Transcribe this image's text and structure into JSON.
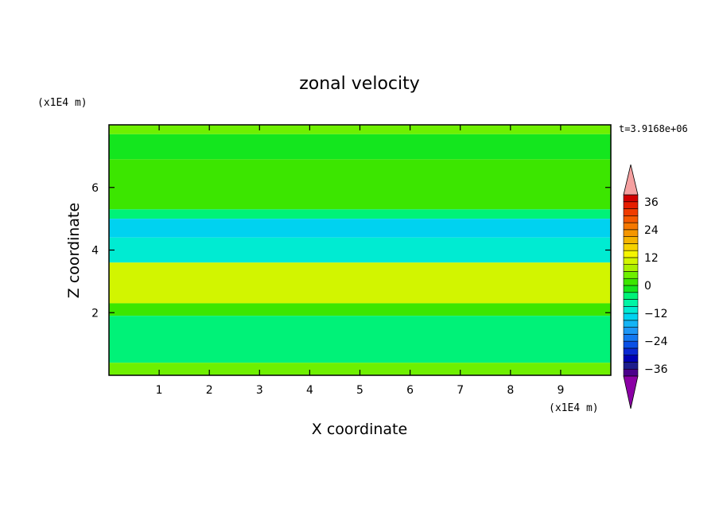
{
  "chart_data": {
    "type": "heatmap",
    "title": "zonal velocity",
    "xlabel": "X coordinate",
    "ylabel": "Z coordinate",
    "x_unit": "(x1E4 m)",
    "y_unit": "(x1E4 m)",
    "time_label": "t=3.9168e+06",
    "xlim": [
      0,
      10
    ],
    "ylim": [
      0,
      8
    ],
    "x_ticks": [
      "1",
      "2",
      "3",
      "4",
      "5",
      "6",
      "7",
      "8",
      "9"
    ],
    "y_ticks": [
      "2",
      "4",
      "6"
    ],
    "colorbar": {
      "levels": [
        -42,
        -39,
        -36,
        -33,
        -30,
        -27,
        -24,
        -21,
        -18,
        -15,
        -12,
        -9,
        -6,
        -3,
        0,
        3,
        6,
        9,
        12,
        15,
        18,
        21,
        24,
        27,
        30,
        33,
        36,
        39,
        42
      ],
      "labels": [
        "36",
        "24",
        "12",
        "0",
        "-12",
        "-24",
        "-36"
      ],
      "colors": [
        "#8b00a5",
        "#4b008b",
        "#1d1d8c",
        "#0000b4",
        "#0a28d2",
        "#0a50e6",
        "#1478f0",
        "#1e96f5",
        "#14b4f5",
        "#00d2f0",
        "#00ebd2",
        "#00f5a5",
        "#00f278",
        "#14e61e",
        "#3ce600",
        "#6ef000",
        "#aaf000",
        "#d2f500",
        "#f5f500",
        "#f5d200",
        "#f5b400",
        "#f59600",
        "#f57800",
        "#f55a00",
        "#f03c00",
        "#e61e00",
        "#d20000",
        "#f5a0a0"
      ]
    },
    "bands": [
      {
        "z": [
          7.7,
          8.0
        ],
        "value": 3
      },
      {
        "z": [
          6.9,
          7.7
        ],
        "value": -3
      },
      {
        "z": [
          5.3,
          6.9
        ],
        "value": 1
      },
      {
        "z": [
          5.0,
          5.3
        ],
        "value": -5
      },
      {
        "z": [
          4.4,
          5.0
        ],
        "value": -15
      },
      {
        "z": [
          3.6,
          4.4
        ],
        "value": -10
      },
      {
        "z": [
          2.3,
          3.6
        ],
        "value": 10
      },
      {
        "z": [
          1.9,
          2.3
        ],
        "value": 2
      },
      {
        "z": [
          0.4,
          1.9
        ],
        "value": -6
      },
      {
        "z": [
          0.0,
          0.4
        ],
        "value": 4
      }
    ]
  }
}
